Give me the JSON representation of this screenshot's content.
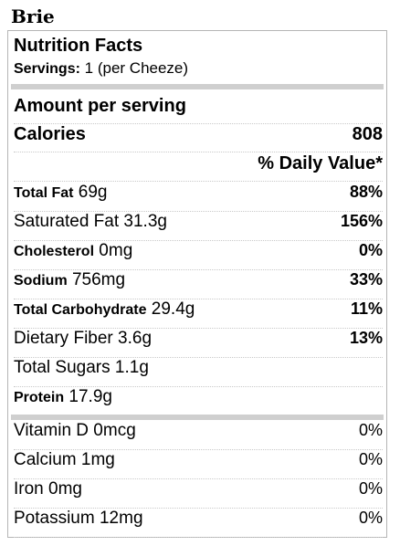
{
  "product": {
    "title": "Brie"
  },
  "label": {
    "heading": "Nutrition Facts",
    "servings_label": "Servings:",
    "servings_value": "1 (per Cheeze)",
    "amount_per_serving": "Amount per serving",
    "calories_label": "Calories",
    "calories_value": "808",
    "daily_value_header": "% Daily Value*"
  },
  "nutrients": [
    {
      "name": "Total Fat",
      "amount": "69g",
      "dv": "88%"
    },
    {
      "name": "Saturated Fat",
      "amount": "31.3g",
      "dv": "156%"
    },
    {
      "name": "Cholesterol",
      "amount": "0mg",
      "dv": "0%"
    },
    {
      "name": "Sodium",
      "amount": "756mg",
      "dv": "33%"
    },
    {
      "name": "Total Carbohydrate",
      "amount": "29.4g",
      "dv": "11%"
    },
    {
      "name": "Dietary Fiber",
      "amount": "3.6g",
      "dv": "13%"
    },
    {
      "name": "Total Sugars",
      "amount": "1.1g",
      "dv": ""
    },
    {
      "name": "Protein",
      "amount": "17.9g",
      "dv": ""
    }
  ],
  "vitamins": [
    {
      "name": "Vitamin D",
      "amount": "0mcg",
      "dv": "0%"
    },
    {
      "name": "Calcium",
      "amount": "1mg",
      "dv": "0%"
    },
    {
      "name": "Iron",
      "amount": "0mg",
      "dv": "0%"
    },
    {
      "name": "Potassium",
      "amount": "12mg",
      "dv": "0%"
    }
  ]
}
